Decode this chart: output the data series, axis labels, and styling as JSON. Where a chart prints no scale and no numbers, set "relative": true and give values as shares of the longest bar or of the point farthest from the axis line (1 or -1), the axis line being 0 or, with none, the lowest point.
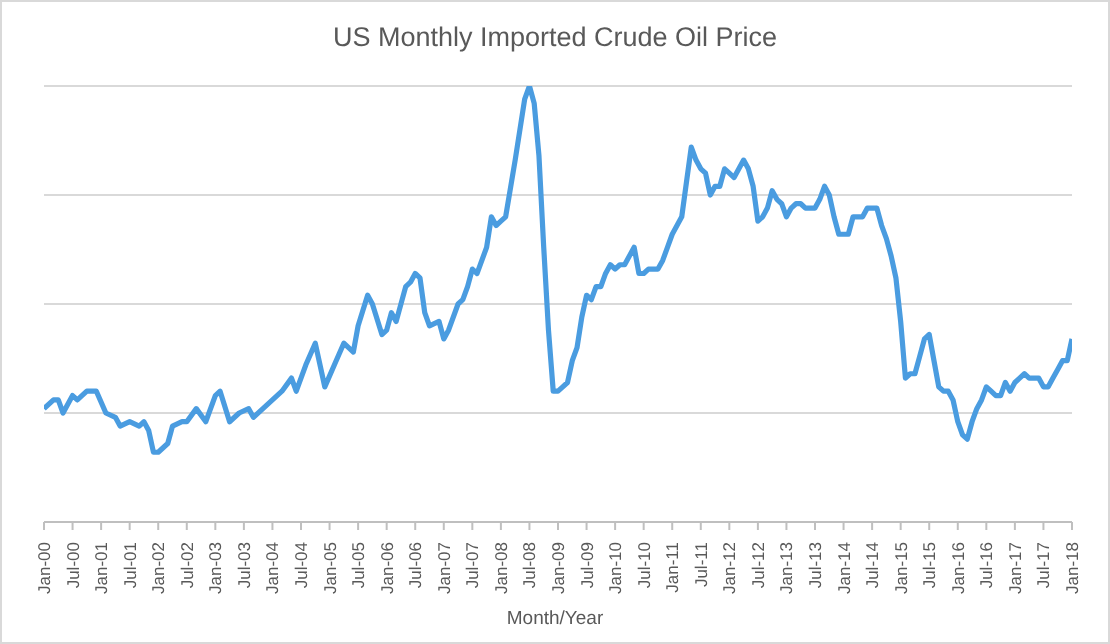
{
  "chart_data": {
    "type": "line",
    "title": "US Monthly Imported Crude Oil Price",
    "xlabel": "Month/Year",
    "x": [
      "2000-01",
      "2000-03",
      "2000-04",
      "2000-05",
      "2000-07",
      "2000-08",
      "2000-10",
      "2000-12",
      "2001-02",
      "2001-04",
      "2001-05",
      "2001-07",
      "2001-09",
      "2001-10",
      "2001-11",
      "2001-12",
      "2002-01",
      "2002-03",
      "2002-04",
      "2002-06",
      "2002-07",
      "2002-09",
      "2002-11",
      "2003-01",
      "2003-02",
      "2003-04",
      "2003-06",
      "2003-08",
      "2003-09",
      "2003-11",
      "2004-01",
      "2004-03",
      "2004-05",
      "2004-06",
      "2004-08",
      "2004-10",
      "2004-12",
      "2005-02",
      "2005-04",
      "2005-05",
      "2005-06",
      "2005-07",
      "2005-09",
      "2005-10",
      "2005-12",
      "2006-01",
      "2006-02",
      "2006-03",
      "2006-05",
      "2006-06",
      "2006-07",
      "2006-08",
      "2006-09",
      "2006-10",
      "2006-12",
      "2007-01",
      "2007-02",
      "2007-04",
      "2007-05",
      "2007-06",
      "2007-07",
      "2007-08",
      "2007-10",
      "2007-11",
      "2007-12",
      "2008-01",
      "2008-02",
      "2008-04",
      "2008-06",
      "2008-07",
      "2008-08",
      "2008-09",
      "2008-10",
      "2008-11",
      "2008-12",
      "2009-01",
      "2009-02",
      "2009-03",
      "2009-04",
      "2009-05",
      "2009-06",
      "2009-07",
      "2009-08",
      "2009-09",
      "2009-10",
      "2009-11",
      "2009-12",
      "2010-01",
      "2010-02",
      "2010-03",
      "2010-04",
      "2010-05",
      "2010-06",
      "2010-07",
      "2010-08",
      "2010-09",
      "2010-10",
      "2010-11",
      "2010-12",
      "2011-01",
      "2011-02",
      "2011-03",
      "2011-04",
      "2011-05",
      "2011-06",
      "2011-07",
      "2011-08",
      "2011-09",
      "2011-10",
      "2011-11",
      "2011-12",
      "2012-01",
      "2012-02",
      "2012-03",
      "2012-04",
      "2012-05",
      "2012-06",
      "2012-07",
      "2012-08",
      "2012-09",
      "2012-10",
      "2012-11",
      "2012-12",
      "2013-01",
      "2013-02",
      "2013-03",
      "2013-04",
      "2013-05",
      "2013-06",
      "2013-07",
      "2013-08",
      "2013-09",
      "2013-10",
      "2013-11",
      "2013-12",
      "2014-01",
      "2014-02",
      "2014-03",
      "2014-04",
      "2014-05",
      "2014-06",
      "2014-07",
      "2014-08",
      "2014-09",
      "2014-10",
      "2014-11",
      "2014-12",
      "2015-01",
      "2015-02",
      "2015-03",
      "2015-04",
      "2015-05",
      "2015-06",
      "2015-07",
      "2015-08",
      "2015-09",
      "2015-10",
      "2015-11",
      "2015-12",
      "2016-01",
      "2016-02",
      "2016-03",
      "2016-04",
      "2016-05",
      "2016-06",
      "2016-07",
      "2016-08",
      "2016-09",
      "2016-10",
      "2016-11",
      "2016-12",
      "2017-01",
      "2017-02",
      "2017-03",
      "2017-04",
      "2017-05",
      "2017-06",
      "2017-07",
      "2017-08",
      "2017-09",
      "2017-10",
      "2017-11",
      "2017-12",
      "2018-01"
    ],
    "relative": true,
    "series": [
      {
        "color": "#4a9ce0",
        "values": [
          0.26,
          0.28,
          0.28,
          0.25,
          0.29,
          0.28,
          0.3,
          0.3,
          0.25,
          0.24,
          0.22,
          0.23,
          0.22,
          0.23,
          0.21,
          0.16,
          0.16,
          0.18,
          0.22,
          0.23,
          0.23,
          0.26,
          0.23,
          0.29,
          0.3,
          0.23,
          0.25,
          0.26,
          0.24,
          0.26,
          0.28,
          0.3,
          0.33,
          0.3,
          0.36,
          0.41,
          0.31,
          0.36,
          0.41,
          0.4,
          0.39,
          0.45,
          0.52,
          0.5,
          0.43,
          0.44,
          0.48,
          0.46,
          0.54,
          0.55,
          0.57,
          0.56,
          0.48,
          0.45,
          0.46,
          0.42,
          0.44,
          0.5,
          0.51,
          0.54,
          0.58,
          0.57,
          0.63,
          0.7,
          0.68,
          0.69,
          0.7,
          0.83,
          0.97,
          1,
          0.96,
          0.84,
          0.63,
          0.44,
          0.3,
          0.3,
          0.31,
          0.32,
          0.37,
          0.4,
          0.47,
          0.52,
          0.51,
          0.54,
          0.54,
          0.57,
          0.59,
          0.58,
          0.59,
          0.59,
          0.61,
          0.63,
          0.57,
          0.57,
          0.58,
          0.58,
          0.58,
          0.6,
          0.63,
          0.66,
          0.68,
          0.7,
          0.78,
          0.86,
          0.83,
          0.81,
          0.8,
          0.75,
          0.77,
          0.77,
          0.81,
          0.8,
          0.79,
          0.81,
          0.83,
          0.81,
          0.77,
          0.69,
          0.7,
          0.72,
          0.76,
          0.74,
          0.73,
          0.7,
          0.72,
          0.73,
          0.73,
          0.72,
          0.72,
          0.72,
          0.74,
          0.77,
          0.75,
          0.7,
          0.66,
          0.66,
          0.66,
          0.7,
          0.7,
          0.7,
          0.72,
          0.72,
          0.72,
          0.68,
          0.65,
          0.61,
          0.56,
          0.46,
          0.33,
          0.34,
          0.34,
          0.38,
          0.42,
          0.43,
          0.37,
          0.31,
          0.3,
          0.3,
          0.28,
          0.23,
          0.2,
          0.19,
          0.23,
          0.26,
          0.28,
          0.31,
          0.3,
          0.29,
          0.29,
          0.32,
          0.3,
          0.32,
          0.33,
          0.34,
          0.33,
          0.33,
          0.33,
          0.31,
          0.31,
          0.33,
          0.35,
          0.37,
          0.37,
          0.42
        ]
      }
    ],
    "xlim": [
      "2000-01",
      "2018-01"
    ],
    "xticks": [
      {
        "value": "2000-01",
        "label": "Jan-00"
      },
      {
        "value": "2000-07",
        "label": "Jul-00"
      },
      {
        "value": "2001-01",
        "label": "Jan-01"
      },
      {
        "value": "2001-07",
        "label": "Jul-01"
      },
      {
        "value": "2002-01",
        "label": "Jan-02"
      },
      {
        "value": "2002-07",
        "label": "Jul-02"
      },
      {
        "value": "2003-01",
        "label": "Jan-03"
      },
      {
        "value": "2003-07",
        "label": "Jul-03"
      },
      {
        "value": "2004-01",
        "label": "Jan-04"
      },
      {
        "value": "2004-07",
        "label": "Jul-04"
      },
      {
        "value": "2005-01",
        "label": "Jan-05"
      },
      {
        "value": "2005-07",
        "label": "Jul-05"
      },
      {
        "value": "2006-01",
        "label": "Jan-06"
      },
      {
        "value": "2006-07",
        "label": "Jul-06"
      },
      {
        "value": "2007-01",
        "label": "Jan-07"
      },
      {
        "value": "2007-07",
        "label": "Jul-07"
      },
      {
        "value": "2008-01",
        "label": "Jan-08"
      },
      {
        "value": "2008-07",
        "label": "Jul-08"
      },
      {
        "value": "2009-01",
        "label": "Jan-09"
      },
      {
        "value": "2009-07",
        "label": "Jul-09"
      },
      {
        "value": "2010-01",
        "label": "Jan-10"
      },
      {
        "value": "2010-07",
        "label": "Jul-10"
      },
      {
        "value": "2011-01",
        "label": "Jan-11"
      },
      {
        "value": "2011-07",
        "label": "Jul-11"
      },
      {
        "value": "2012-01",
        "label": "Jan-12"
      },
      {
        "value": "2012-07",
        "label": "Jul-12"
      },
      {
        "value": "2013-01",
        "label": "Jan-13"
      },
      {
        "value": "2013-07",
        "label": "Jul-13"
      },
      {
        "value": "2014-01",
        "label": "Jan-14"
      },
      {
        "value": "2014-07",
        "label": "Jul-14"
      },
      {
        "value": "2015-01",
        "label": "Jan-15"
      },
      {
        "value": "2015-07",
        "label": "Jul-15"
      },
      {
        "value": "2016-01",
        "label": "Jan-16"
      },
      {
        "value": "2016-07",
        "label": "Jul-16"
      },
      {
        "value": "2017-01",
        "label": "Jan-17"
      },
      {
        "value": "2017-07",
        "label": "Jul-17"
      },
      {
        "value": "2018-01",
        "label": "Jan-18"
      }
    ],
    "grid": "y",
    "legend": false,
    "marker": "none",
    "line_style": "solid"
  }
}
